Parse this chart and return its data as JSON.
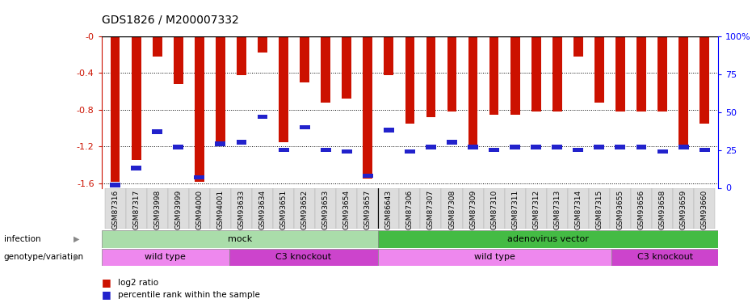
{
  "title": "GDS1826 / M200007332",
  "samples": [
    "GSM87316",
    "GSM87317",
    "GSM93998",
    "GSM93999",
    "GSM94000",
    "GSM94001",
    "GSM93633",
    "GSM93634",
    "GSM93651",
    "GSM93652",
    "GSM93653",
    "GSM93654",
    "GSM93657",
    "GSM86643",
    "GSM87306",
    "GSM87307",
    "GSM87308",
    "GSM87309",
    "GSM87310",
    "GSM87311",
    "GSM87312",
    "GSM87313",
    "GSM87314",
    "GSM87315",
    "GSM93655",
    "GSM93656",
    "GSM93658",
    "GSM93659",
    "GSM93660"
  ],
  "log2_ratio": [
    -1.58,
    -1.35,
    -0.22,
    -0.52,
    -1.58,
    -1.2,
    -0.42,
    -0.18,
    -1.15,
    -0.5,
    -0.72,
    -0.68,
    -1.55,
    -0.42,
    -0.95,
    -0.88,
    -0.82,
    -1.2,
    -0.85,
    -0.85,
    -0.82,
    -0.82,
    -0.22,
    -0.72,
    -0.82,
    -0.82,
    -0.82,
    -1.2,
    -0.95
  ],
  "percentile_rank": [
    2,
    13,
    37,
    27,
    7,
    29,
    30,
    47,
    25,
    40,
    25,
    24,
    8,
    38,
    24,
    27,
    30,
    27,
    25,
    27,
    27,
    27,
    25,
    27,
    27,
    27,
    24,
    27,
    25
  ],
  "infection_groups": [
    {
      "label": "mock",
      "start": 0,
      "end": 12,
      "color": "#AADDAA"
    },
    {
      "label": "adenovirus vector",
      "start": 13,
      "end": 28,
      "color": "#44BB44"
    }
  ],
  "genotype_groups": [
    {
      "label": "wild type",
      "start": 0,
      "end": 5,
      "color": "#EE88EE"
    },
    {
      "label": "C3 knockout",
      "start": 6,
      "end": 12,
      "color": "#CC44CC"
    },
    {
      "label": "wild type",
      "start": 13,
      "end": 23,
      "color": "#EE88EE"
    },
    {
      "label": "C3 knockout",
      "start": 24,
      "end": 28,
      "color": "#CC44CC"
    }
  ],
  "ylim": [
    -1.65,
    0.0
  ],
  "yticks_left": [
    0.0,
    -0.4,
    -0.8,
    -1.2,
    -1.6
  ],
  "yticks_right": [
    0,
    25,
    50,
    75,
    100
  ],
  "bar_color": "#CC1100",
  "percentile_color": "#2222CC",
  "legend_log2": "log2 ratio",
  "legend_pct": "percentile rank within the sample"
}
